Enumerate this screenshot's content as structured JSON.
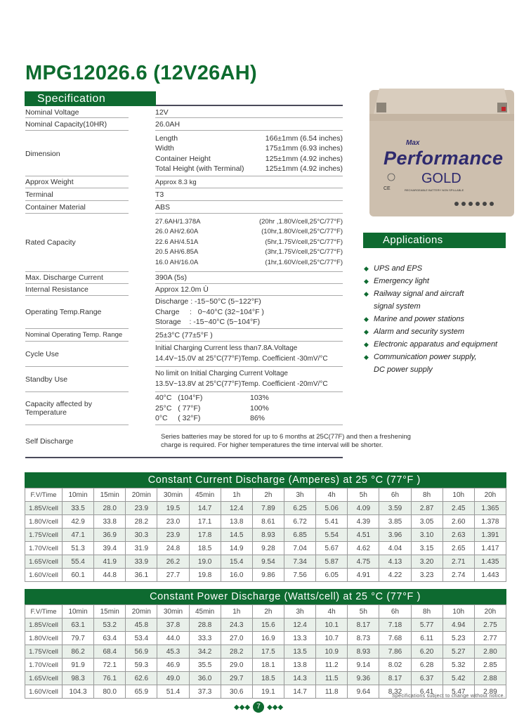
{
  "title": "MPG12026.6 (12V26AH)",
  "spec": {
    "header": "Specification",
    "nominal_voltage": {
      "label": "Nominal Voltage",
      "value": "12V"
    },
    "nominal_capacity": {
      "label": "Nominal Capacity(10HR)",
      "value": "26.0AH"
    },
    "dimension": {
      "label": "Dimension",
      "lines": [
        [
          "Length",
          "166±1mm (6.54 inches)"
        ],
        [
          "Width",
          "175±1mm (6.93 inches)"
        ],
        [
          "Container Height",
          "125±1mm (4.92 inches)"
        ],
        [
          "Total Height (with Terminal)",
          "125±1mm (4.92 inches)"
        ]
      ]
    },
    "weight": {
      "label": "Approx Weight",
      "value": "Approx 8.3 kg"
    },
    "terminal": {
      "label": "Terminal",
      "value": "T3"
    },
    "container": {
      "label": "Container Material",
      "value": "ABS"
    },
    "rated": {
      "label": "Rated Capacity",
      "lines": [
        [
          "27.6AH/1.378A",
          "(20hr ,1.80V/cell,25°C/77°F)"
        ],
        [
          "26.0 AH/2.60A",
          "(10hr,1.80V/cell,25°C/77°F)"
        ],
        [
          "22.6 AH/4.51A",
          "(5hr,1.75V/cell,25°C/77°F)"
        ],
        [
          "20.5 AH/6.85A",
          "(3hr,1.75V/cell,25°C/77°F)"
        ],
        [
          "16.0 AH/16.0A",
          "(1hr,1.60V/cell,25°C/77°F)"
        ]
      ]
    },
    "max_discharge": {
      "label": "Max. Discharge Current",
      "value": "390A (5s)"
    },
    "internal_resistance": {
      "label": "Internal Resistance",
      "value": "Approx 12.0m  Ù"
    },
    "op_temp": {
      "label": "Operating Temp.Range",
      "lines": [
        "Discharge : -15~50°C (5~122°F)",
        "Charge     :   0~40°C (32~104°F )",
        "Storage    : -15~40°C (5~104°F)"
      ]
    },
    "nominal_op_temp": {
      "label": "Nominal Operating Temp. Range",
      "value": "25±3°C (77±5°F )"
    },
    "cycle_use": {
      "label": "Cycle Use",
      "lines": [
        "Initial Charging Current less than7.8A.Voltage",
        "14.4V~15.0V at 25°C(77°F)Temp. Coefficient -30mV/°C"
      ]
    },
    "standby_use": {
      "label": "Standby Use",
      "lines": [
        "No limit on Initial Charging Current Voltage",
        "13.5V~13.8V at 25°C(77°F)Temp. Coefficient -20mV/°C"
      ]
    },
    "cap_temp": {
      "label": "Capacity affected by Temperature",
      "lines": [
        [
          "40°C   (104°F)",
          "103%"
        ],
        [
          "25°C   ( 77°F)",
          "100%"
        ],
        [
          "0°C     ( 32°F)",
          "86%"
        ]
      ]
    },
    "self_discharge": {
      "label": "Self Discharge",
      "value": "Series batteries may be stored for up to 6 months at 25C(77F) and then a freshening charge is required. For higher temperatures the time interval will be shorter."
    }
  },
  "battery_image": {
    "brand_top": "Max",
    "brand": "Performance",
    "brand_sub": "GOLD",
    "label": "RECHARGEABLE BATTERY NON SPILLABLE"
  },
  "applications": {
    "header": "Applications",
    "items": [
      [
        "UPS and EPS"
      ],
      [
        "Emergency light"
      ],
      [
        "Railway signal and aircraft",
        "signal system"
      ],
      [
        "Marine and power stations"
      ],
      [
        "Alarm and security system"
      ],
      [
        "Electronic apparatus and equipment"
      ],
      [
        "Communication power supply,",
        "DC power supply"
      ]
    ]
  },
  "columns": [
    "F.V/Time",
    "10min",
    "15min",
    "20min",
    "30min",
    "45min",
    "1h",
    "2h",
    "3h",
    "4h",
    "5h",
    "6h",
    "8h",
    "10h",
    "20h"
  ],
  "current_table": {
    "title": "Constant Current Discharge (Amperes) at 25 °C (77°F )",
    "rows": [
      [
        "1.85V/cell",
        "33.5",
        "28.0",
        "23.9",
        "19.5",
        "14.7",
        "12.4",
        "7.89",
        "6.25",
        "5.06",
        "4.09",
        "3.59",
        "2.87",
        "2.45",
        "1.365"
      ],
      [
        "1.80V/cell",
        "42.9",
        "33.8",
        "28.2",
        "23.0",
        "17.1",
        "13.8",
        "8.61",
        "6.72",
        "5.41",
        "4.39",
        "3.85",
        "3.05",
        "2.60",
        "1.378"
      ],
      [
        "1.75V/cell",
        "47.1",
        "36.9",
        "30.3",
        "23.9",
        "17.8",
        "14.5",
        "8.93",
        "6.85",
        "5.54",
        "4.51",
        "3.96",
        "3.10",
        "2.63",
        "1.391"
      ],
      [
        "1.70V/cell",
        "51.3",
        "39.4",
        "31.9",
        "24.8",
        "18.5",
        "14.9",
        "9.28",
        "7.04",
        "5.67",
        "4.62",
        "4.04",
        "3.15",
        "2.65",
        "1.417"
      ],
      [
        "1.65V/cell",
        "55.4",
        "41.9",
        "33.9",
        "26.2",
        "19.0",
        "15.4",
        "9.54",
        "7.34",
        "5.87",
        "4.75",
        "4.13",
        "3.20",
        "2.71",
        "1.435"
      ],
      [
        "1.60V/cell",
        "60.1",
        "44.8",
        "36.1",
        "27.7",
        "19.8",
        "16.0",
        "9.86",
        "7.56",
        "6.05",
        "4.91",
        "4.22",
        "3.23",
        "2.74",
        "1.443"
      ]
    ]
  },
  "power_table": {
    "title": "Constant Power Discharge (Watts/cell) at 25 °C (77°F )",
    "rows": [
      [
        "1.85V/cell",
        "63.1",
        "53.2",
        "45.8",
        "37.8",
        "28.8",
        "24.3",
        "15.6",
        "12.4",
        "10.1",
        "8.17",
        "7.18",
        "5.77",
        "4.94",
        "2.75"
      ],
      [
        "1.80V/cell",
        "79.7",
        "63.4",
        "53.4",
        "44.0",
        "33.3",
        "27.0",
        "16.9",
        "13.3",
        "10.7",
        "8.73",
        "7.68",
        "6.11",
        "5.23",
        "2.77"
      ],
      [
        "1.75V/cell",
        "86.2",
        "68.4",
        "56.9",
        "45.3",
        "34.2",
        "28.2",
        "17.5",
        "13.5",
        "10.9",
        "8.93",
        "7.86",
        "6.20",
        "5.27",
        "2.80"
      ],
      [
        "1.70V/cell",
        "91.9",
        "72.1",
        "59.3",
        "46.9",
        "35.5",
        "29.0",
        "18.1",
        "13.8",
        "11.2",
        "9.14",
        "8.02",
        "6.28",
        "5.32",
        "2.85"
      ],
      [
        "1.65V/cell",
        "98.3",
        "76.1",
        "62.6",
        "49.0",
        "36.0",
        "29.7",
        "18.5",
        "14.3",
        "11.5",
        "9.36",
        "8.17",
        "6.37",
        "5.42",
        "2.88"
      ],
      [
        "1.60V/cell",
        "104.3",
        "80.0",
        "65.9",
        "51.4",
        "37.3",
        "30.6",
        "19.1",
        "14.7",
        "11.8",
        "9.64",
        "8.32",
        "6.41",
        "5.47",
        "2.89"
      ]
    ]
  },
  "footnote": "Specifications subject to change without notice.",
  "page_number": "7",
  "colors": {
    "brand_green": "#0e6a30",
    "row_alt": "#e9f0ea"
  }
}
